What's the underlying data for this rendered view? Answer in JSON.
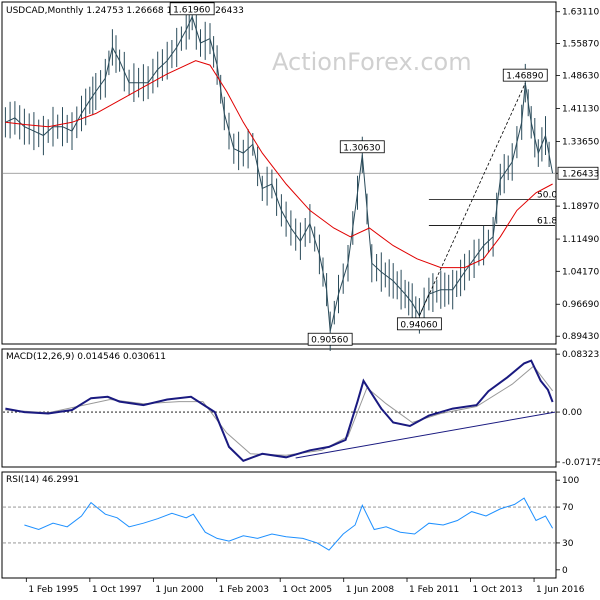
{
  "chart_data": {
    "type": "line",
    "symbol": "USDCAD",
    "timeframe": "Monthly",
    "header": "USDCAD,Monthly  1.24753 1.26668 1.24500 1.26433",
    "watermark": "ActionForex.com",
    "current_price": "1.26433",
    "x_tick_labels": [
      "1 Feb 1995",
      "1 Oct 1997",
      "1 Jun 2000",
      "1 Feb 2003",
      "1 Oct 2005",
      "1 Jun 2008",
      "1 Feb 2011",
      "1 Oct 2013",
      "1 Jun 2016"
    ],
    "x_tick_years": [
      1995.08,
      1997.75,
      2000.42,
      2003.08,
      2005.75,
      2008.42,
      2011.08,
      2013.75,
      2016.42
    ],
    "x_range": [
      1994.1,
      2017.3
    ],
    "price_panel": {
      "ylim": [
        0.8789,
        1.6509
      ],
      "tick_labels": [
        "1.63110",
        "1.55870",
        "1.48630",
        "1.41130",
        "1.33650",
        "1.26433",
        "1.18970",
        "1.11490",
        "1.04170",
        "0.96690",
        "0.89430"
      ],
      "tick_values": [
        1.6311,
        1.5587,
        1.4863,
        1.4113,
        1.3365,
        1.26433,
        1.1897,
        1.1149,
        1.0417,
        0.9669,
        0.8943
      ],
      "price_series": [
        [
          1994.2,
          1.38
        ],
        [
          1994.6,
          1.39
        ],
        [
          1995.0,
          1.37
        ],
        [
          1995.4,
          1.36
        ],
        [
          1995.8,
          1.35
        ],
        [
          1996.2,
          1.37
        ],
        [
          1996.6,
          1.37
        ],
        [
          1997.0,
          1.36
        ],
        [
          1997.4,
          1.4
        ],
        [
          1997.75,
          1.43
        ],
        [
          1998.0,
          1.45
        ],
        [
          1998.4,
          1.48
        ],
        [
          1998.7,
          1.55
        ],
        [
          1999.0,
          1.52
        ],
        [
          1999.4,
          1.47
        ],
        [
          1999.8,
          1.47
        ],
        [
          2000.2,
          1.47
        ],
        [
          2000.6,
          1.5
        ],
        [
          2001.0,
          1.52
        ],
        [
          2001.4,
          1.55
        ],
        [
          2001.8,
          1.59
        ],
        [
          2002.05,
          1.6196
        ],
        [
          2002.4,
          1.56
        ],
        [
          2002.8,
          1.57
        ],
        [
          2003.1,
          1.51
        ],
        [
          2003.4,
          1.4
        ],
        [
          2003.8,
          1.32
        ],
        [
          2004.2,
          1.31
        ],
        [
          2004.6,
          1.33
        ],
        [
          2005.0,
          1.23
        ],
        [
          2005.4,
          1.24
        ],
        [
          2005.8,
          1.18
        ],
        [
          2006.2,
          1.14
        ],
        [
          2006.6,
          1.11
        ],
        [
          2007.0,
          1.15
        ],
        [
          2007.4,
          1.08
        ],
        [
          2007.7,
          1.0
        ],
        [
          2007.85,
          0.9056
        ],
        [
          2008.2,
          0.99
        ],
        [
          2008.6,
          1.06
        ],
        [
          2009.0,
          1.22
        ],
        [
          2009.2,
          1.3063
        ],
        [
          2009.6,
          1.06
        ],
        [
          2010.0,
          1.04
        ],
        [
          2010.5,
          1.02
        ],
        [
          2011.0,
          0.99
        ],
        [
          2011.3,
          0.97
        ],
        [
          2011.6,
          0.9406
        ],
        [
          2012.0,
          0.99
        ],
        [
          2012.5,
          1.0
        ],
        [
          2013.0,
          1.0
        ],
        [
          2013.5,
          1.04
        ],
        [
          2013.9,
          1.07
        ],
        [
          2014.3,
          1.1
        ],
        [
          2014.7,
          1.12
        ],
        [
          2015.0,
          1.25
        ],
        [
          2015.5,
          1.29
        ],
        [
          2015.9,
          1.38
        ],
        [
          2016.05,
          1.4689
        ],
        [
          2016.3,
          1.38
        ],
        [
          2016.6,
          1.31
        ],
        [
          2016.9,
          1.35
        ],
        [
          2017.2,
          1.26433
        ]
      ],
      "moving_average": [
        [
          1994.2,
          1.38
        ],
        [
          1995.0,
          1.375
        ],
        [
          1996.0,
          1.37
        ],
        [
          1997.0,
          1.38
        ],
        [
          1998.0,
          1.4
        ],
        [
          1999.0,
          1.43
        ],
        [
          2000.0,
          1.46
        ],
        [
          2001.0,
          1.49
        ],
        [
          2002.2,
          1.52
        ],
        [
          2002.8,
          1.51
        ],
        [
          2003.5,
          1.45
        ],
        [
          2004.2,
          1.38
        ],
        [
          2005.0,
          1.31
        ],
        [
          2006.0,
          1.24
        ],
        [
          2007.0,
          1.18
        ],
        [
          2008.0,
          1.14
        ],
        [
          2008.7,
          1.12
        ],
        [
          2009.5,
          1.14
        ],
        [
          2010.5,
          1.1
        ],
        [
          2011.5,
          1.07
        ],
        [
          2012.5,
          1.05
        ],
        [
          2013.5,
          1.05
        ],
        [
          2014.3,
          1.07
        ],
        [
          2015.0,
          1.12
        ],
        [
          2015.7,
          1.18
        ],
        [
          2016.5,
          1.22
        ],
        [
          2017.2,
          1.24
        ]
      ],
      "annotations": [
        {
          "label": "1.61960",
          "x": 2002.05,
          "y": 1.6196,
          "position": "above"
        },
        {
          "label": "1.30630",
          "x": 2009.2,
          "y": 1.3063,
          "position": "above"
        },
        {
          "label": "0.90560",
          "x": 2007.85,
          "y": 0.9056,
          "position": "below"
        },
        {
          "label": "0.94060",
          "x": 2011.6,
          "y": 0.9406,
          "position": "below"
        },
        {
          "label": "1.46890",
          "x": 2016.05,
          "y": 1.4689,
          "position": "above"
        }
      ],
      "fib_levels": [
        {
          "label": "50.0",
          "value": 1.2048
        },
        {
          "label": "61.8",
          "value": 1.1455
        }
      ],
      "fib_x_start": 2012.0,
      "trendline": {
        "from": [
          2011.6,
          0.9406
        ],
        "to": [
          2016.05,
          1.4689
        ]
      }
    },
    "macd_panel": {
      "header": "MACD(12,26,9) 0.014546 0.030611",
      "ylim": [
        -0.0775,
        0.0892
      ],
      "tick_labels": [
        "0.083235",
        "0.00",
        "-0.071752"
      ],
      "tick_values": [
        0.083235,
        0.0,
        -0.071752
      ],
      "macd_series": [
        [
          1994.2,
          0.005
        ],
        [
          1995.0,
          0.0
        ],
        [
          1996.0,
          -0.002
        ],
        [
          1997.0,
          0.003
        ],
        [
          1997.8,
          0.02
        ],
        [
          1998.5,
          0.022
        ],
        [
          1999.0,
          0.015
        ],
        [
          2000.0,
          0.01
        ],
        [
          2001.0,
          0.018
        ],
        [
          2002.0,
          0.022
        ],
        [
          2003.0,
          0.0
        ],
        [
          2003.6,
          -0.05
        ],
        [
          2004.2,
          -0.07
        ],
        [
          2005.0,
          -0.06
        ],
        [
          2006.0,
          -0.065
        ],
        [
          2007.0,
          -0.055
        ],
        [
          2007.8,
          -0.05
        ],
        [
          2008.5,
          -0.04
        ],
        [
          2009.0,
          0.015
        ],
        [
          2009.25,
          0.045
        ],
        [
          2010.0,
          0.005
        ],
        [
          2010.5,
          -0.015
        ],
        [
          2011.2,
          -0.02
        ],
        [
          2012.0,
          -0.005
        ],
        [
          2013.0,
          0.005
        ],
        [
          2014.0,
          0.01
        ],
        [
          2014.5,
          0.03
        ],
        [
          2015.3,
          0.05
        ],
        [
          2016.0,
          0.07
        ],
        [
          2016.3,
          0.074
        ],
        [
          2016.7,
          0.045
        ],
        [
          2017.0,
          0.032
        ],
        [
          2017.2,
          0.0145
        ]
      ],
      "signal_series": [
        [
          1994.2,
          0.003
        ],
        [
          1996.0,
          -0.001
        ],
        [
          1997.5,
          0.01
        ],
        [
          1998.6,
          0.018
        ],
        [
          2000.0,
          0.012
        ],
        [
          2001.5,
          0.015
        ],
        [
          2002.5,
          0.015
        ],
        [
          2003.5,
          -0.03
        ],
        [
          2004.5,
          -0.06
        ],
        [
          2006.0,
          -0.062
        ],
        [
          2007.5,
          -0.055
        ],
        [
          2008.6,
          -0.035
        ],
        [
          2009.4,
          0.035
        ],
        [
          2010.2,
          0.012
        ],
        [
          2011.3,
          -0.015
        ],
        [
          2012.5,
          -0.002
        ],
        [
          2014.0,
          0.008
        ],
        [
          2015.5,
          0.04
        ],
        [
          2016.4,
          0.066
        ],
        [
          2017.2,
          0.0306
        ]
      ],
      "trendline": {
        "from": [
          2006.4,
          -0.066
        ],
        "to": [
          2017.3,
          0.0
        ]
      }
    },
    "rsi_panel": {
      "header": "RSI(14) 46.2991",
      "ylim": [
        0,
        100
      ],
      "tick_labels": [
        "100",
        "70",
        "30",
        "0"
      ],
      "tick_values": [
        100,
        70,
        30,
        0
      ],
      "levels": [
        70,
        30
      ],
      "rsi_series": [
        [
          1995.0,
          50
        ],
        [
          1995.6,
          45
        ],
        [
          1996.2,
          52
        ],
        [
          1996.8,
          48
        ],
        [
          1997.4,
          60
        ],
        [
          1997.8,
          75
        ],
        [
          1998.4,
          62
        ],
        [
          1998.9,
          58
        ],
        [
          1999.4,
          48
        ],
        [
          2000.0,
          52
        ],
        [
          2000.6,
          57
        ],
        [
          2001.2,
          63
        ],
        [
          2001.8,
          58
        ],
        [
          2002.1,
          62
        ],
        [
          2002.6,
          42
        ],
        [
          2003.1,
          35
        ],
        [
          2003.6,
          32
        ],
        [
          2004.2,
          38
        ],
        [
          2004.8,
          35
        ],
        [
          2005.4,
          40
        ],
        [
          2006.0,
          37
        ],
        [
          2006.7,
          35
        ],
        [
          2007.3,
          30
        ],
        [
          2007.8,
          22
        ],
        [
          2008.4,
          40
        ],
        [
          2008.9,
          50
        ],
        [
          2009.2,
          72
        ],
        [
          2009.7,
          45
        ],
        [
          2010.2,
          48
        ],
        [
          2010.8,
          42
        ],
        [
          2011.4,
          40
        ],
        [
          2012.0,
          52
        ],
        [
          2012.6,
          50
        ],
        [
          2013.2,
          55
        ],
        [
          2013.8,
          65
        ],
        [
          2014.4,
          60
        ],
        [
          2015.0,
          68
        ],
        [
          2015.6,
          73
        ],
        [
          2016.0,
          80
        ],
        [
          2016.5,
          55
        ],
        [
          2016.9,
          60
        ],
        [
          2017.2,
          46.3
        ]
      ]
    }
  }
}
